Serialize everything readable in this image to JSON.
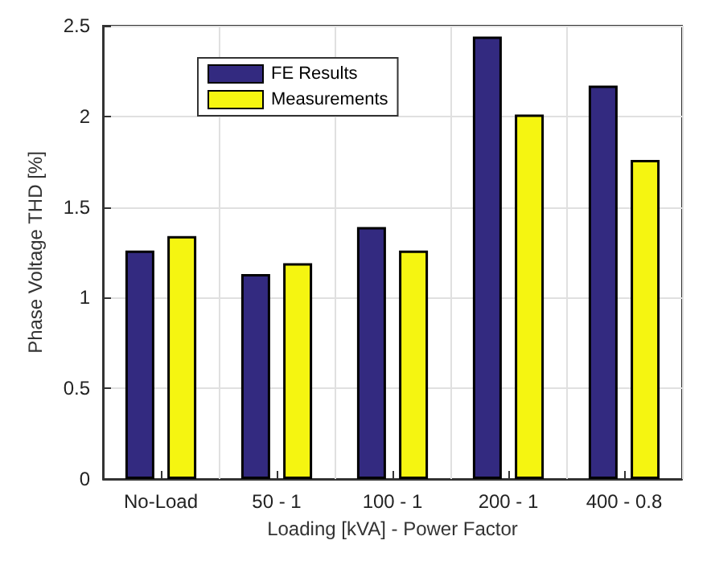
{
  "chart_data": {
    "type": "bar",
    "xlabel": "Loading [kVA] - Power Factor",
    "ylabel": "Phase Voltage THD [%]",
    "categories": [
      "No-Load",
      "50 - 1",
      "100 - 1",
      "200 - 1",
      "400 - 0.8"
    ],
    "series": [
      {
        "name": "FE Results",
        "color": "#332a80",
        "values": [
          1.26,
          1.13,
          1.39,
          2.44,
          2.17
        ]
      },
      {
        "name": "Measurements",
        "color": "#f5f511",
        "values": [
          1.34,
          1.19,
          1.26,
          2.01,
          1.76
        ]
      }
    ],
    "ylim": [
      0,
      2.5
    ],
    "yticks": [
      0,
      0.5,
      1,
      1.5,
      2,
      2.5
    ],
    "grid": true,
    "legend": "top left"
  }
}
